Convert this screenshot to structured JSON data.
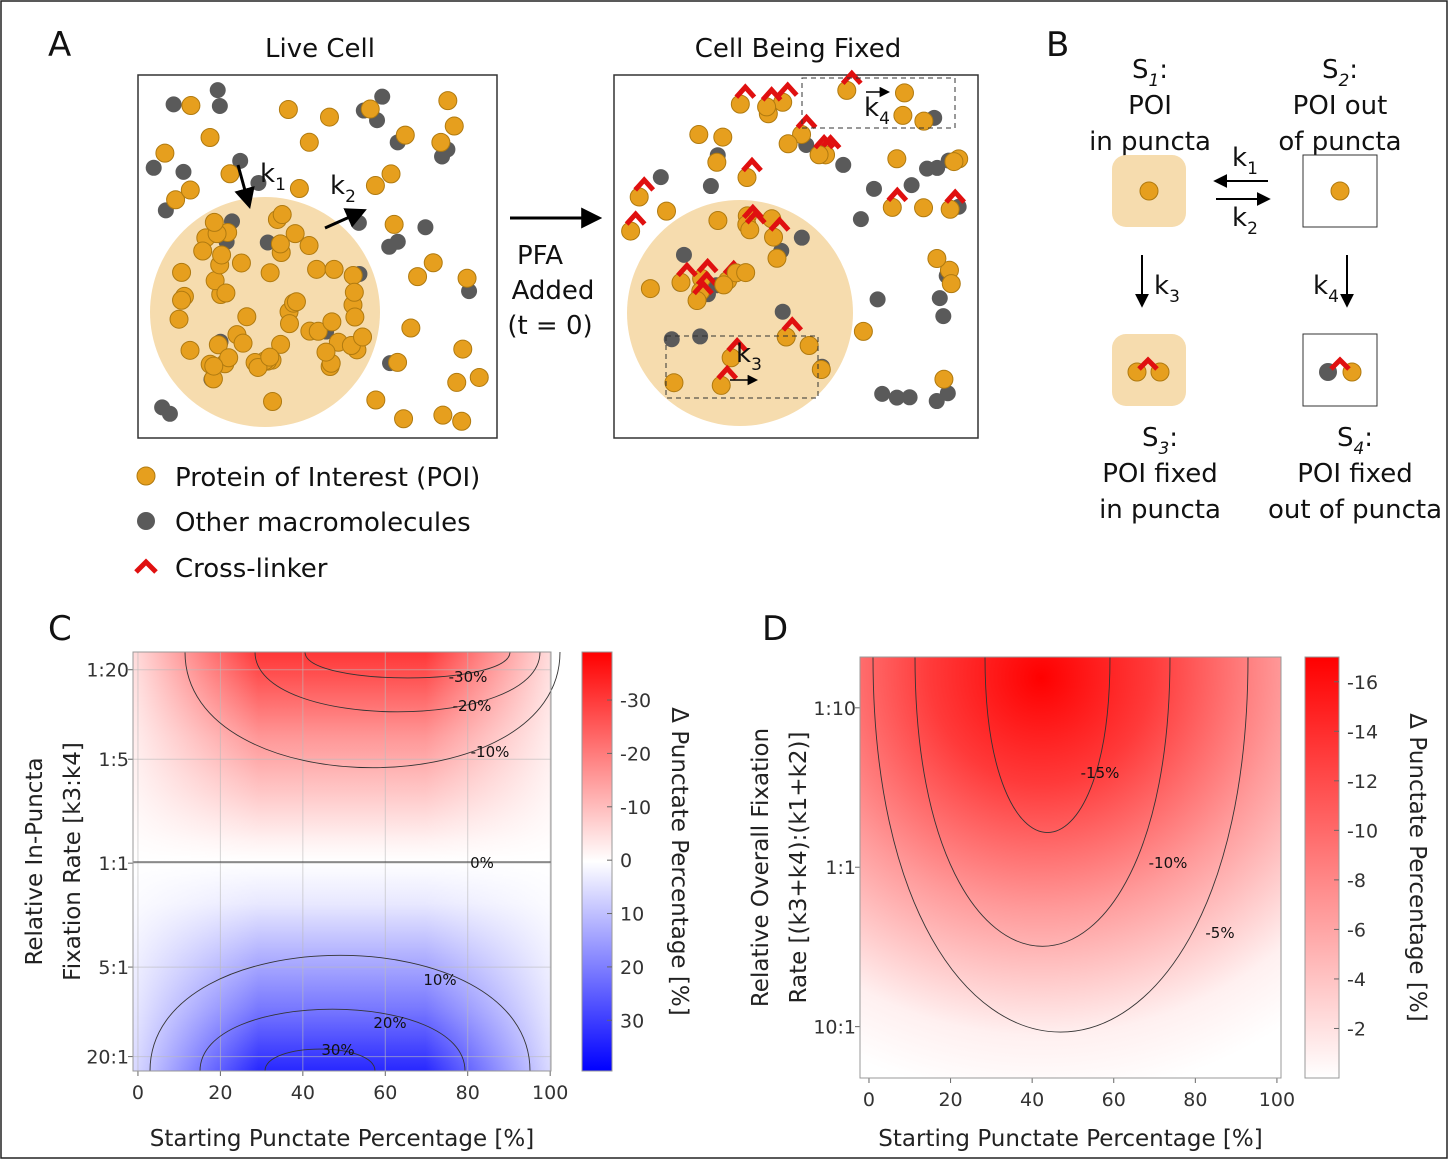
{
  "panel_a": {
    "label": "A",
    "live_title": "Live Cell",
    "fixed_title": "Cell Being Fixed",
    "arrow_text": [
      "PFA",
      "Added",
      "(t = 0)"
    ],
    "rates": [
      {
        "symbol": "k",
        "index": 1
      },
      {
        "symbol": "k",
        "index": 2
      },
      {
        "symbol": "k",
        "index": 3
      },
      {
        "symbol": "k",
        "index": 4
      }
    ],
    "legend": [
      "Protein of Interest (POI)",
      "Other macromolecules",
      "Cross-linker"
    ]
  },
  "panel_b": {
    "label": "B",
    "states": [
      {
        "symbol": "S",
        "index": 1,
        "suffix": ":",
        "lines": [
          "POI",
          "in puncta"
        ]
      },
      {
        "symbol": "S",
        "index": 2,
        "suffix": ":",
        "lines": [
          "POI out",
          "of puncta"
        ]
      },
      {
        "symbol": "S",
        "index": 3,
        "suffix": ":",
        "lines": [
          "POI fixed",
          "in puncta"
        ]
      },
      {
        "symbol": "S",
        "index": 4,
        "suffix": ":",
        "lines": [
          "POI fixed",
          "out of puncta"
        ]
      }
    ],
    "rates": [
      {
        "symbol": "k",
        "index": 1
      },
      {
        "symbol": "k",
        "index": 2
      },
      {
        "symbol": "k",
        "index": 3
      },
      {
        "symbol": "k",
        "index": 4
      }
    ]
  },
  "chart_data": [
    {
      "type": "heatmap",
      "panel_label": "C",
      "xlabel": "Starting Punctate Percentage [%]",
      "ylabel": [
        "Relative In-Puncta",
        "Fixation Rate [k3:k4]"
      ],
      "xlim": [
        -1.2,
        100.2
      ],
      "xticks": [
        0,
        20,
        40,
        60,
        80,
        100
      ],
      "log_y": true,
      "ylim": [
        25,
        0.038
      ],
      "yticks": [
        {
          "value": 0.05,
          "label": "1:20"
        },
        {
          "value": 0.2,
          "label": "1:5"
        },
        {
          "value": 1,
          "label": "1:1"
        },
        {
          "value": 5,
          "label": "5:1"
        },
        {
          "value": 20,
          "label": "20:1"
        }
      ],
      "grid": true,
      "colorbar": {
        "label": "Δ Punctate Percentage [%]",
        "clim": [
          39.5,
          -39
        ],
        "ticks": [
          -30,
          -20,
          -10,
          0,
          10,
          20,
          30
        ],
        "colors": [
          "#ff0000",
          "#ffffff",
          "#0000ff"
        ]
      },
      "contours": {
        "values": [
          -30,
          -20,
          -10,
          0,
          10,
          20,
          30
        ],
        "value_labels": [
          "-30%",
          "-20%",
          "-10%",
          "0%",
          "10%",
          "20%",
          "30%"
        ]
      }
    },
    {
      "type": "heatmap",
      "panel_label": "D",
      "xlabel": "Starting Punctate Percentage [%]",
      "ylabel": [
        "Relative Overall Fixation",
        "Rate [(k3+k4):(k1+k2)]"
      ],
      "xlim": [
        -2.2,
        101
      ],
      "xticks": [
        0,
        20,
        40,
        60,
        80,
        100
      ],
      "log_y": true,
      "ylim": [
        21,
        0.048
      ],
      "yticks": [
        {
          "value": 0.1,
          "label": "1:10"
        },
        {
          "value": 1,
          "label": "1:1"
        },
        {
          "value": 10,
          "label": "10:1"
        }
      ],
      "grid": false,
      "colorbar": {
        "label": "Δ Punctate Percentage [%]",
        "clim": [
          0,
          -17
        ],
        "ticks": [
          -16,
          -14,
          -12,
          -10,
          -8,
          -6,
          -4,
          -2
        ],
        "colors": [
          "#ff0000",
          "#ffffff"
        ]
      },
      "contours": {
        "values": [
          -15,
          -10,
          -5
        ],
        "value_labels": [
          "-15%",
          "-10%",
          "-5%"
        ]
      }
    }
  ]
}
